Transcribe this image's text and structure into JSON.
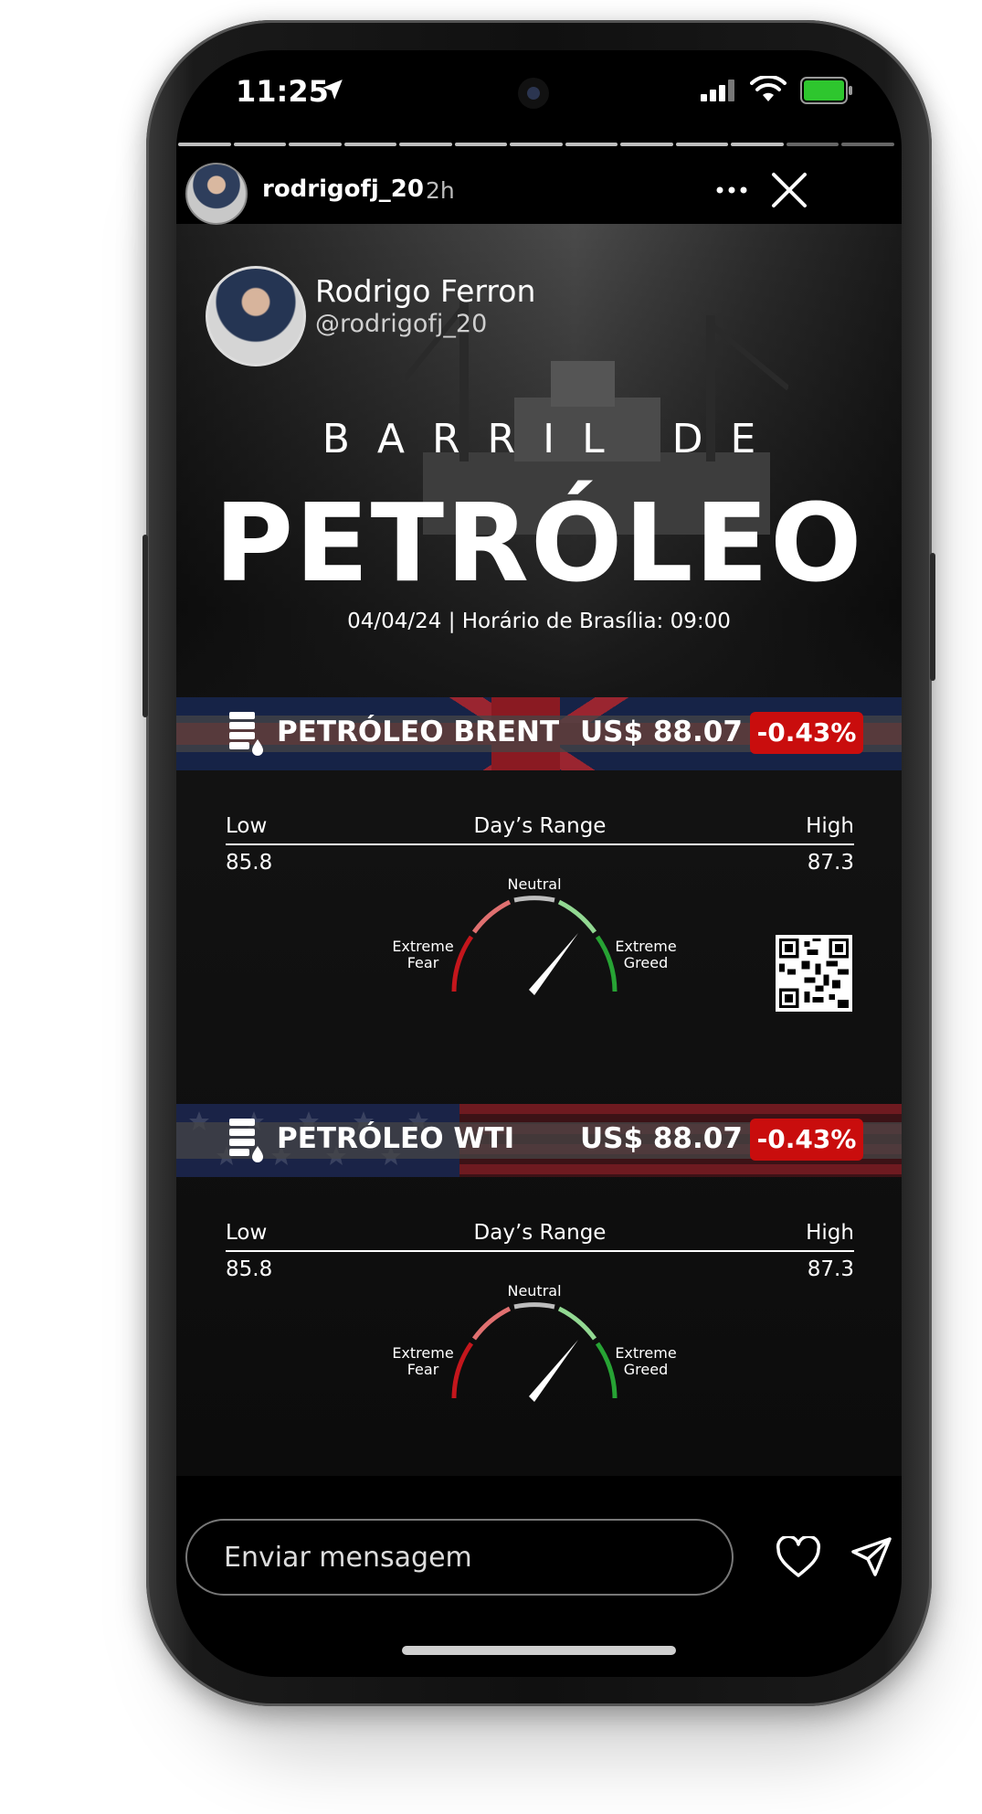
{
  "status_bar": {
    "time": "11:25"
  },
  "story": {
    "username": "rodrigofj_20",
    "time_ago": "2h"
  },
  "author": {
    "name": "Rodrigo Ferron",
    "handle": "@rodrigofj_20"
  },
  "headline": {
    "small": "BARRIL DE",
    "big": "PETRÓLEO",
    "date_line": "04/04/24 | Horário de Brasília: 09:00"
  },
  "cards": [
    {
      "title": "PETRÓLEO BRENT",
      "price": "US$ 88.07",
      "change": "-0.43%",
      "range_low_label": "Low",
      "range_title": "Day’s Range",
      "range_high_label": "High",
      "low": "85.8",
      "high": "87.3",
      "gauge": {
        "neutral": "Neutral",
        "fear_1": "Extreme",
        "fear_2": "Fear",
        "greed_1": "Extreme",
        "greed_2": "Greed"
      }
    },
    {
      "title": "PETRÓLEO WTI",
      "price": "US$ 88.07",
      "change": "-0.43%",
      "range_low_label": "Low",
      "range_title": "Day’s Range",
      "range_high_label": "High",
      "low": "85.8",
      "high": "87.3",
      "gauge": {
        "neutral": "Neutral",
        "fear_1": "Extreme",
        "fear_2": "Fear",
        "greed_1": "Extreme",
        "greed_2": "Greed"
      }
    }
  ],
  "bottom_bar": {
    "message_placeholder": "Enviar mensagem"
  },
  "colors": {
    "change_badge": "#c90d0d",
    "gauge_fear": "#c4161c",
    "gauge_greed": "#27a334",
    "gauge_neutral": "#bdbdbd"
  },
  "icons": [
    "location-arrow-icon",
    "signal-icon",
    "wifi-icon",
    "battery-icon",
    "more-icon",
    "close-icon",
    "barrel-icon",
    "qr-code-icon",
    "heart-icon",
    "send-icon"
  ]
}
